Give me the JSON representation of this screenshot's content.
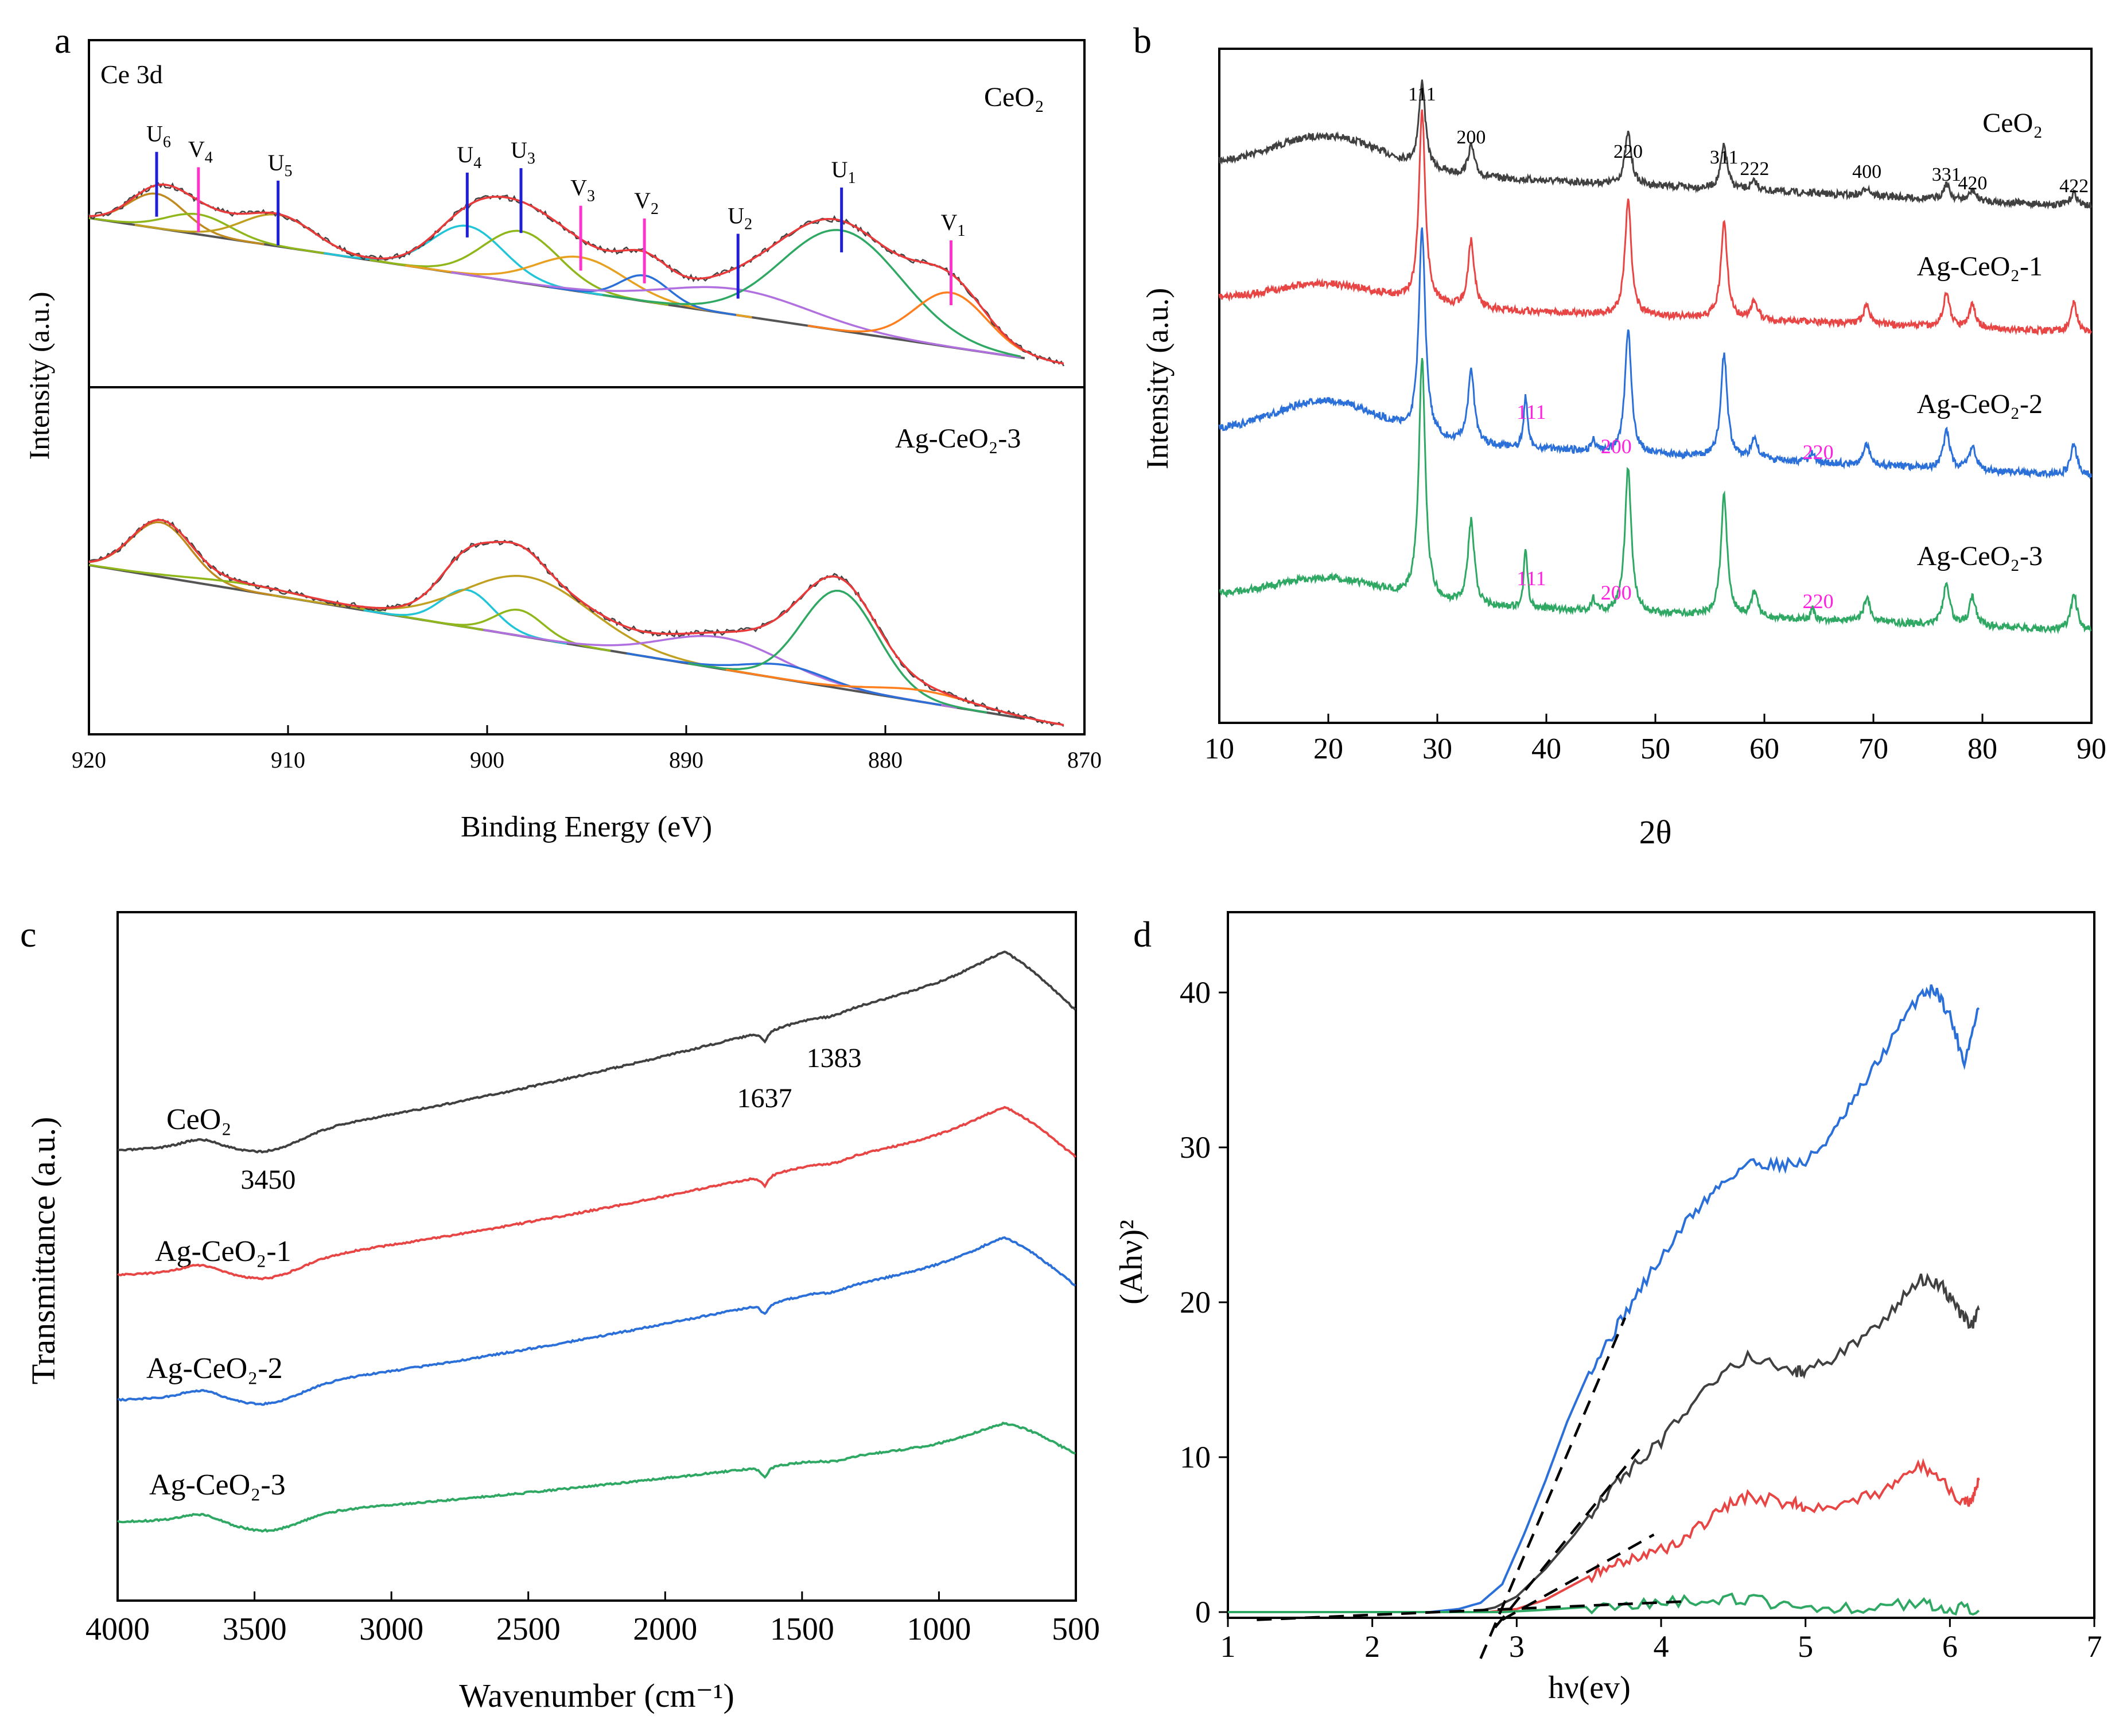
{
  "figure": {
    "panels": [
      "a",
      "b",
      "c",
      "d"
    ]
  },
  "chart_data": [
    {
      "panel": "a",
      "type": "line",
      "title": "Ce 3d",
      "xlabel": "Binding Energy (eV)",
      "ylabel": "Intensity (a.u.)",
      "xlim": [
        920,
        870
      ],
      "xticks": [
        920,
        910,
        900,
        890,
        880,
        870
      ],
      "grid": false,
      "subpanels": [
        {
          "label": "CeO₂",
          "peaks": [
            {
              "name": "U",
              "sub": "6",
              "be": 916.6,
              "color": "#1f1fd8"
            },
            {
              "name": "V",
              "sub": "4",
              "be": 914.5,
              "color": "#ff33cc"
            },
            {
              "name": "U",
              "sub": "5",
              "be": 910.5,
              "color": "#1f1fd8"
            },
            {
              "name": "U",
              "sub": "4",
              "be": 901.0,
              "color": "#1f1fd8"
            },
            {
              "name": "U",
              "sub": "3",
              "be": 898.3,
              "color": "#1f1fd8"
            },
            {
              "name": "V",
              "sub": "3",
              "be": 895.3,
              "color": "#ff33cc"
            },
            {
              "name": "V",
              "sub": "2",
              "be": 892.1,
              "color": "#ff33cc"
            },
            {
              "name": "U",
              "sub": "2",
              "be": 887.4,
              "color": "#1f1fd8"
            },
            {
              "name": "U",
              "sub": "1",
              "be": 882.2,
              "color": "#1f1fd8"
            },
            {
              "name": "V",
              "sub": "1",
              "be": 876.7,
              "color": "#ff33cc"
            }
          ]
        },
        {
          "label": "Ag-CeO₂-3"
        }
      ]
    },
    {
      "panel": "b",
      "type": "line",
      "xlabel": "2θ",
      "ylabel": "Intensity (a.u.)",
      "xlim": [
        10,
        90
      ],
      "xticks": [
        10,
        20,
        30,
        40,
        50,
        60,
        70,
        80,
        90
      ],
      "series": [
        {
          "name": "CeO₂",
          "color": "#404040"
        },
        {
          "name": "Ag-CeO₂-1",
          "color": "#e84545"
        },
        {
          "name": "Ag-CeO₂-2",
          "color": "#2b6fd8"
        },
        {
          "name": "Ag-CeO₂-3",
          "color": "#2fa864"
        }
      ],
      "ceo2_reflections": [
        {
          "label": "111",
          "x": 28.6
        },
        {
          "label": "200",
          "x": 33.1
        },
        {
          "label": "220",
          "x": 47.5
        },
        {
          "label": "311",
          "x": 56.3
        },
        {
          "label": "222",
          "x": 59.1
        },
        {
          "label": "400",
          "x": 69.4
        },
        {
          "label": "331",
          "x": 76.7
        },
        {
          "label": "420",
          "x": 79.1
        },
        {
          "label": "422",
          "x": 88.4
        }
      ],
      "ag_reflections": [
        {
          "label": "111",
          "x": 38.1
        },
        {
          "label": "200",
          "x": 44.3
        },
        {
          "label": "220",
          "x": 64.4
        }
      ]
    },
    {
      "panel": "c",
      "type": "line",
      "xlabel": "Wavenumber (cm⁻¹)",
      "ylabel": "Transmittance (a.u.)",
      "xlim": [
        4000,
        500
      ],
      "xticks": [
        4000,
        3500,
        3000,
        2500,
        2000,
        1500,
        1000,
        500
      ],
      "series": [
        {
          "name": "CeO₂",
          "color": "#404040"
        },
        {
          "name": "Ag-CeO₂-1",
          "color": "#e84545"
        },
        {
          "name": "Ag-CeO₂-2",
          "color": "#2b6fd8"
        },
        {
          "name": "Ag-CeO₂-3",
          "color": "#2fa864"
        }
      ],
      "annotations": [
        {
          "label": "3450",
          "x": 3450
        },
        {
          "label": "1637",
          "x": 1637
        },
        {
          "label": "1383",
          "x": 1383
        }
      ]
    },
    {
      "panel": "d",
      "type": "line",
      "xlabel": "hν(ev)",
      "ylabel": "(Ahν)²",
      "xlim": [
        1,
        7
      ],
      "ylim": [
        0,
        45
      ],
      "xticks": [
        1,
        2,
        3,
        4,
        5,
        6,
        7
      ],
      "yticks": [
        0,
        10,
        20,
        30,
        40
      ],
      "series": [
        {
          "name": "blue",
          "color": "#2b6fd8",
          "x": [
            1.0,
            2.4,
            2.6,
            2.75,
            2.9,
            3.05,
            3.2,
            3.35,
            3.5,
            3.7,
            3.9,
            4.2,
            4.4,
            4.6,
            4.8,
            5.0,
            5.2,
            5.4,
            5.6,
            5.8,
            5.9,
            6.0,
            6.1,
            6.2
          ],
          "y": [
            0.0,
            0.0,
            0.2,
            0.6,
            1.8,
            5.0,
            8.5,
            12.3,
            15.5,
            18.5,
            21.5,
            25.5,
            27.5,
            29.0,
            28.9,
            29.0,
            31.0,
            34.0,
            37.0,
            40.0,
            40.2,
            38.5,
            35.5,
            39.0
          ]
        },
        {
          "name": "black",
          "color": "#404040",
          "x": [
            1.0,
            2.7,
            2.85,
            3.0,
            3.2,
            3.4,
            3.6,
            3.8,
            4.0,
            4.3,
            4.6,
            4.9,
            5.0,
            5.3,
            5.6,
            5.8,
            5.95,
            6.05,
            6.15,
            6.2
          ],
          "y": [
            0.0,
            0.0,
            0.3,
            1.0,
            2.8,
            5.0,
            7.5,
            9.3,
            11.0,
            14.5,
            16.5,
            15.5,
            15.5,
            17.0,
            19.5,
            21.5,
            21.0,
            19.5,
            18.5,
            19.5
          ]
        },
        {
          "name": "red",
          "color": "#e84545",
          "x": [
            1.0,
            2.8,
            3.0,
            3.2,
            3.4,
            3.6,
            3.8,
            4.0,
            4.2,
            4.4,
            4.6,
            4.9,
            5.0,
            5.3,
            5.6,
            5.8,
            5.95,
            6.1,
            6.15,
            6.2
          ],
          "y": [
            0.0,
            0.0,
            0.2,
            0.8,
            1.8,
            2.8,
            3.5,
            4.0,
            5.0,
            6.5,
            7.5,
            7.0,
            6.8,
            7.0,
            8.0,
            9.5,
            8.5,
            7.0,
            7.0,
            8.5
          ]
        },
        {
          "name": "green",
          "color": "#2fa864",
          "x": [
            1.0,
            2.9,
            3.2,
            3.6,
            4.0,
            4.4,
            4.7,
            5.0,
            5.4,
            5.8,
            6.0,
            6.2
          ],
          "y": [
            0.0,
            0.0,
            0.15,
            0.4,
            0.7,
            0.9,
            0.7,
            0.3,
            0.3,
            0.6,
            0.3,
            0.1
          ]
        }
      ],
      "tangent_lines": [
        {
          "x": [
            2.75,
            3.75
          ],
          "y": [
            -3.0,
            19.0
          ]
        },
        {
          "x": [
            2.85,
            3.85
          ],
          "y": [
            -1.0,
            10.5
          ]
        },
        {
          "x": [
            2.9,
            3.95
          ],
          "y": [
            -0.5,
            5.0
          ]
        },
        {
          "x": [
            1.2,
            4.2
          ],
          "y": [
            -0.5,
            0.7
          ]
        }
      ]
    }
  ]
}
